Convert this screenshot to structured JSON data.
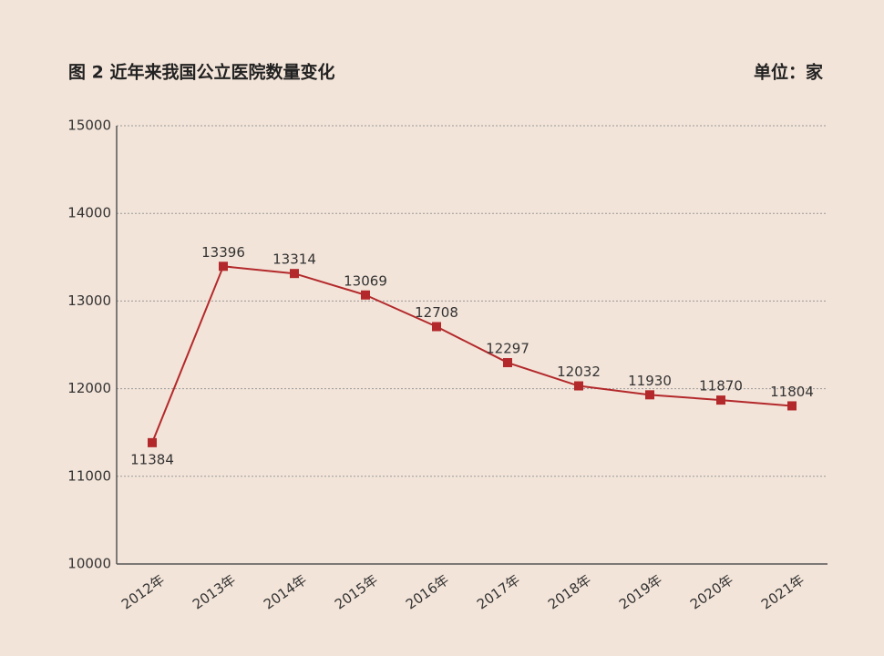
{
  "chart_data": {
    "type": "line",
    "title": "图 2  近年来我国公立医院数量变化",
    "unit": "单位：家",
    "categories": [
      "2012年",
      "2013年",
      "2014年",
      "2015年",
      "2016年",
      "2017年",
      "2018年",
      "2019年",
      "2020年",
      "2021年"
    ],
    "values": [
      11384,
      13396,
      13314,
      13069,
      12708,
      12297,
      12032,
      11930,
      11870,
      11804
    ],
    "color": "#b3292b",
    "ylim": [
      10000,
      15000
    ],
    "yticks": [
      10000,
      11000,
      12000,
      13000,
      14000,
      15000
    ],
    "grid": true
  }
}
